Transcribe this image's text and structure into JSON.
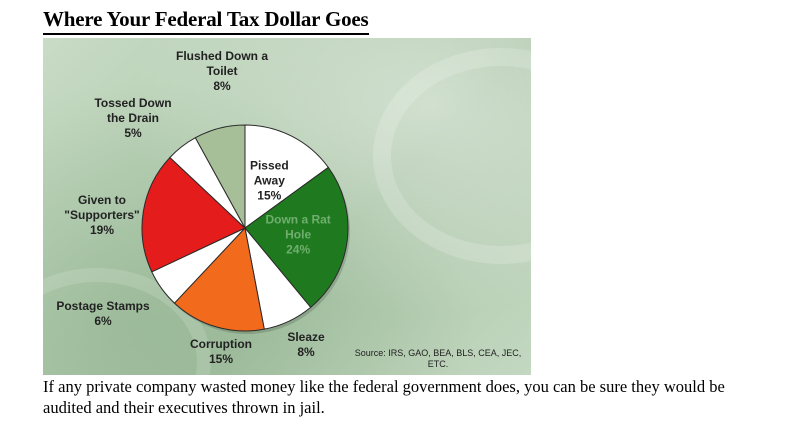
{
  "title": "Where Your Federal Tax Dollar Goes",
  "source": "Source: IRS, GAO, BEA, BLS, CEA, JEC, ETC.",
  "caption": "If any private company wasted money like the federal government does, you can be sure they would be audited and their executives thrown in jail.",
  "chart_data": {
    "type": "pie",
    "title": "Where Your Federal Tax Dollar Goes",
    "start_angle_deg": 0,
    "direction": "clockwise",
    "slices": [
      {
        "name": "Pissed Away",
        "value": 15,
        "label": "Pissed\nAway\n15%",
        "color": "#ffffff"
      },
      {
        "name": "Down a Rat Hole",
        "value": 24,
        "label": "Down a Rat\nHole\n24%",
        "color": "#1f7a1f"
      },
      {
        "name": "Sleaze (white wedge)",
        "value": 8,
        "label": "",
        "color": "#ffffff"
      },
      {
        "name": "Corruption",
        "value": 15,
        "label": "",
        "color": "#f26a1b"
      },
      {
        "name": "Postage Stamps (white wedge)",
        "value": 6,
        "label": "",
        "color": "#ffffff"
      },
      {
        "name": "Given to \"Supporters\"",
        "value": 19,
        "label": "",
        "color": "#e41c1c"
      },
      {
        "name": "Tossed Down the Drain (white wedge)",
        "value": 5,
        "label": "",
        "color": "#ffffff"
      },
      {
        "name": "Flushed Down a Toilet",
        "value": 8,
        "label": "",
        "color": "#a7bf98"
      }
    ],
    "outside_labels": {
      "flushed": "Flushed Down a\nToilet\n8%",
      "tossed": "Tossed Down\nthe Drain\n5%",
      "given": "Given to\n\"Supporters\"\n19%",
      "postage": "Postage Stamps\n6%",
      "corruption": "Corruption\n15%",
      "sleaze": "Sleaze\n8%"
    }
  }
}
